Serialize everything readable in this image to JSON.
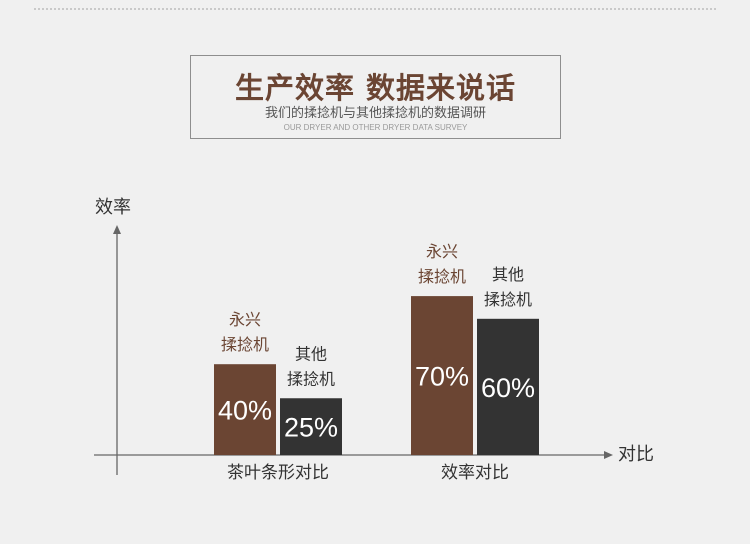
{
  "header": {
    "title": "生产效率 数据来说话",
    "subtitle": "我们的揉捻机与其他揉捻机的数据调研",
    "subtitle_en": "OUR DRYER AND OTHER DRYER DATA SURVEY"
  },
  "colors": {
    "brown": "#6b4533",
    "dark": "#333333",
    "axis": "#666666",
    "text": "#333333"
  },
  "chart_data": {
    "type": "bar",
    "ylabel": "效率",
    "xlabel": "对比",
    "ylim": [
      0,
      100
    ],
    "grid": false,
    "categories": [
      "茶叶条形对比",
      "效率对比"
    ],
    "series": [
      {
        "name": "永兴揉捻机",
        "name_lines": [
          "永兴",
          "揉捻机"
        ],
        "values": [
          40,
          70
        ],
        "value_labels": [
          "40%",
          "70%"
        ]
      },
      {
        "name": "其他揉捻机",
        "name_lines": [
          "其他",
          "揉捻机"
        ],
        "values": [
          25,
          60
        ],
        "value_labels": [
          "25%",
          "60%"
        ]
      }
    ]
  }
}
